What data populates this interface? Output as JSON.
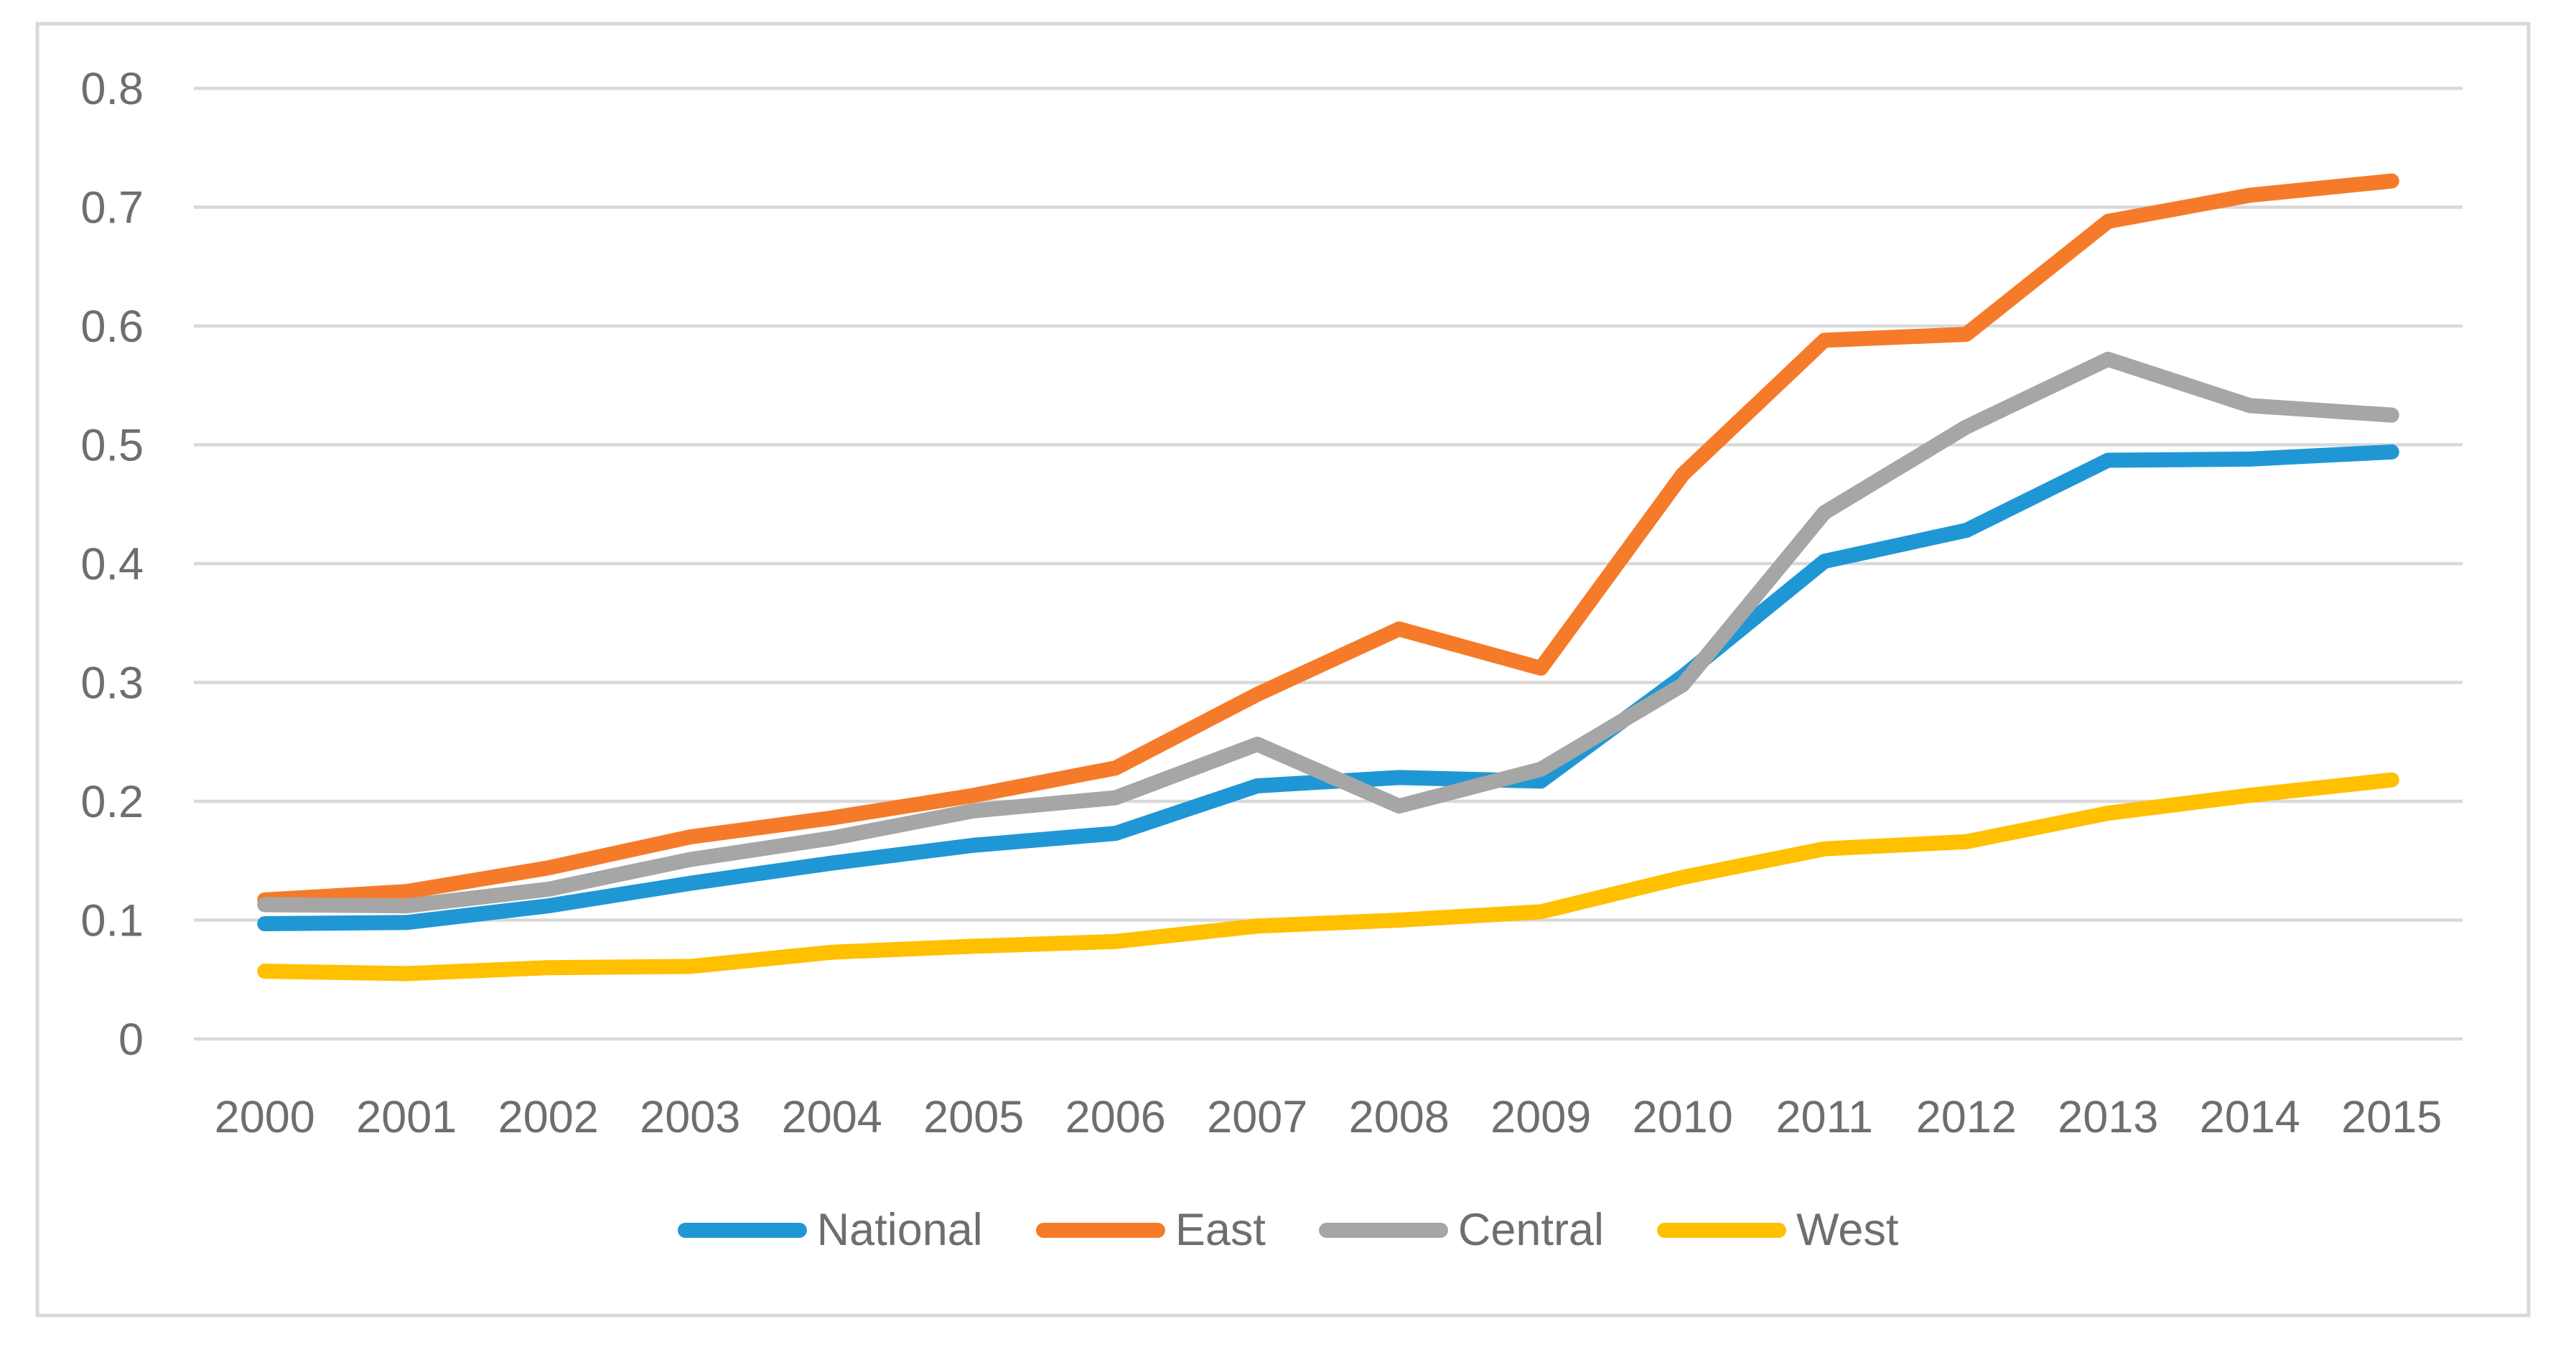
{
  "figure": {
    "background_color": "#FFFFFF",
    "border_color": "#D9D9D9",
    "text_color": "#6E6E6E",
    "grid_color": "#D9D9D9"
  },
  "chart_data": {
    "type": "line",
    "title": "",
    "xlabel": "",
    "ylabel": "",
    "categories": [
      "2000",
      "2001",
      "2002",
      "2003",
      "2004",
      "2005",
      "2006",
      "2007",
      "2008",
      "2009",
      "2010",
      "2011",
      "2012",
      "2013",
      "2014",
      "2015"
    ],
    "series": [
      {
        "name": "National",
        "color": "#2097D5",
        "values": [
          0.097,
          0.098,
          0.112,
          0.131,
          0.148,
          0.163,
          0.173,
          0.213,
          0.22,
          0.217,
          0.305,
          0.402,
          0.428,
          0.487,
          0.488,
          0.494
        ]
      },
      {
        "name": "East",
        "color": "#F57B2A",
        "values": [
          0.117,
          0.124,
          0.144,
          0.17,
          0.186,
          0.205,
          0.228,
          0.29,
          0.345,
          0.312,
          0.475,
          0.588,
          0.593,
          0.688,
          0.71,
          0.722
        ]
      },
      {
        "name": "Central",
        "color": "#A6A6A6",
        "values": [
          0.113,
          0.112,
          0.126,
          0.151,
          0.169,
          0.192,
          0.203,
          0.248,
          0.196,
          0.227,
          0.298,
          0.443,
          0.515,
          0.572,
          0.533,
          0.525
        ]
      },
      {
        "name": "West",
        "color": "#FFC000",
        "values": [
          0.057,
          0.055,
          0.06,
          0.061,
          0.073,
          0.078,
          0.082,
          0.095,
          0.1,
          0.107,
          0.136,
          0.16,
          0.166,
          0.19,
          0.205,
          0.218
        ]
      }
    ],
    "ylim": [
      0,
      0.8
    ],
    "yticks": [
      "0",
      "0.1",
      "0.2",
      "0.3",
      "0.4",
      "0.5",
      "0.6",
      "0.7",
      "0.8"
    ],
    "grid": "horizontal",
    "legend_position": "bottom",
    "legend_labels": [
      "National",
      "East",
      "Central",
      "West"
    ]
  }
}
